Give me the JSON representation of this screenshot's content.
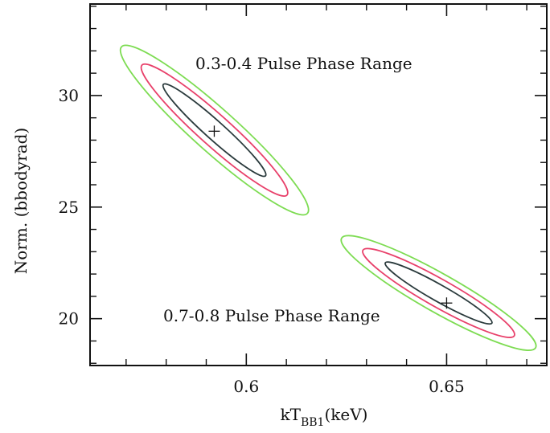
{
  "chart_data": {
    "type": "contour",
    "xlabel": {
      "main": "kT",
      "sub": "BB1",
      "unit": "(keV)"
    },
    "ylabel": "Norm. (bbodyrad)",
    "xlim": [
      0.561,
      0.675
    ],
    "ylim": [
      17.9,
      34.1
    ],
    "x_ticks": [
      {
        "value": 0.6,
        "label": "0.6"
      },
      {
        "value": 0.65,
        "label": "0.65"
      }
    ],
    "y_ticks": [
      {
        "value": 20,
        "label": "20"
      },
      {
        "value": 25,
        "label": "25"
      },
      {
        "value": 30,
        "label": "30"
      }
    ],
    "x_minor_step": 0.01,
    "y_minor_step": 1,
    "grid": false,
    "levels": [
      {
        "color": "#2a3a3c",
        "scale": 1.0
      },
      {
        "color": "#e8406a",
        "scale": 1.42
      },
      {
        "color": "#7ddc52",
        "scale": 1.82
      }
    ],
    "regions": [
      {
        "label": "0.3-0.4 Pulse Phase Range",
        "best_fit": {
          "x": 0.592,
          "y": 28.4
        },
        "contour_1": {
          "x_min": 0.5793,
          "y_max": 30.5,
          "x_max": 0.6048,
          "y_min": 26.4
        }
      },
      {
        "label": "0.7-0.8 Pulse Phase Range",
        "best_fit": {
          "x": 0.65,
          "y": 20.7
        },
        "contour_1": {
          "x_min": 0.6347,
          "y_max": 22.5,
          "x_max": 0.6613,
          "y_min": 19.8
        }
      }
    ]
  }
}
